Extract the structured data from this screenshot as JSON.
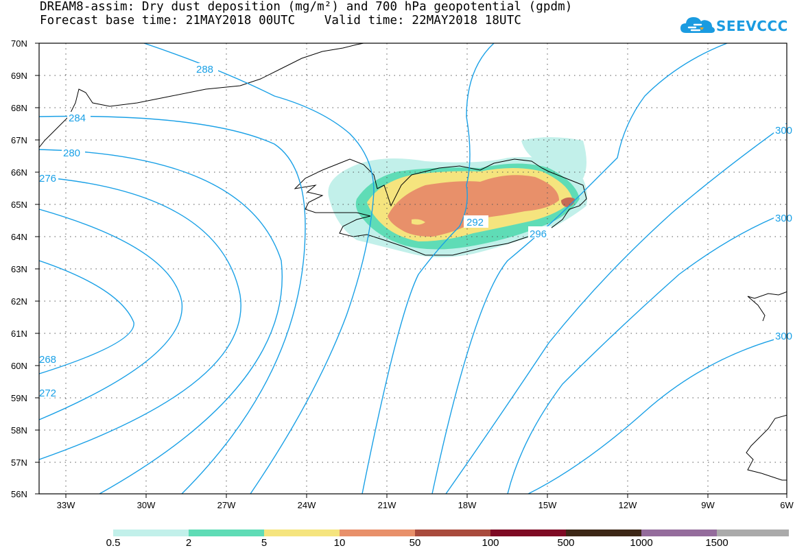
{
  "title": {
    "line1": "DREAM8-assim: Dry dust deposition (mg/m²) and 700 hPa geopotential (gpdm)",
    "line2": "Forecast base time: 21MAY2018 00UTC    Valid time: 22MAY2018 18UTC"
  },
  "logo": {
    "text": "SEEVCCC",
    "icon": "cloud-logo-icon"
  },
  "map": {
    "lat_labels": [
      "70N",
      "69N",
      "68N",
      "67N",
      "66N",
      "65N",
      "64N",
      "63N",
      "62N",
      "61N",
      "60N",
      "59N",
      "58N",
      "57N",
      "56N"
    ],
    "lon_labels": [
      "33W",
      "30W",
      "27W",
      "24W",
      "21W",
      "18W",
      "15W",
      "12W",
      "9W",
      "6W"
    ],
    "contour_labels": [
      "288",
      "284",
      "280",
      "276",
      "292",
      "296",
      "300",
      "300",
      "300",
      "268",
      "272"
    ],
    "contour_color": "#19a0e6",
    "grid": "dotted"
  },
  "legend": {
    "labels": [
      "0.5",
      "2",
      "5",
      "10",
      "50",
      "100",
      "500",
      "1000",
      "1500"
    ],
    "colors": [
      "#c2f0ea",
      "#5fdcb6",
      "#f5e47e",
      "#e8906a",
      "#a94b3d",
      "#7e0a24",
      "#3d2716",
      "#946c9c",
      "#aaaaaa"
    ]
  }
}
